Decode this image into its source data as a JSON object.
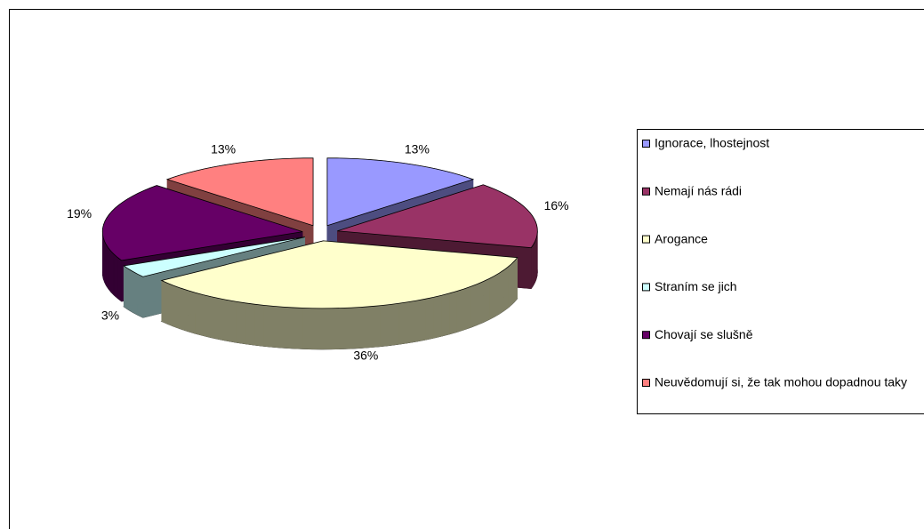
{
  "chart_data": {
    "type": "pie3d",
    "categories": [
      "Ignorace, lhostejnost",
      "Nemají nás rádi",
      "Arogance",
      "Straním se jich",
      "Chovají se slušně",
      "Neuvědomují si, že tak mohou dopadnou taky"
    ],
    "values": [
      13,
      16,
      36,
      3,
      19,
      13
    ],
    "value_labels": [
      "13%",
      "16%",
      "36%",
      "3%",
      "19%",
      "13%"
    ],
    "colors": [
      "#9999FF",
      "#993366",
      "#FFFFCC",
      "#CCFFFF",
      "#660066",
      "#FF8080"
    ],
    "legend": "right"
  }
}
